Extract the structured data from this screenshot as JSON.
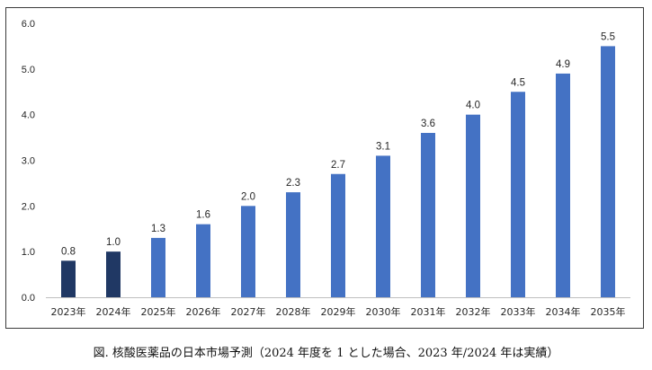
{
  "chart_data": {
    "type": "bar",
    "categories": [
      "2023年",
      "2024年",
      "2025年",
      "2026年",
      "2027年",
      "2028年",
      "2029年",
      "2030年",
      "2031年",
      "2032年",
      "2033年",
      "2034年",
      "2035年"
    ],
    "values": [
      0.8,
      1.0,
      1.3,
      1.6,
      2.0,
      2.3,
      2.7,
      3.1,
      3.6,
      4.0,
      4.5,
      4.9,
      5.5
    ],
    "data_labels": [
      "0.8",
      "1.0",
      "1.3",
      "1.6",
      "2.0",
      "2.3",
      "2.7",
      "3.1",
      "3.6",
      "4.0",
      "4.5",
      "4.9",
      "5.5"
    ],
    "actual_count": 2,
    "ylim": [
      0,
      6
    ],
    "yticks": [
      0,
      1,
      2,
      3,
      4,
      5,
      6
    ],
    "ytick_labels": [
      "0.0",
      "1.0",
      "2.0",
      "3.0",
      "4.0",
      "5.0",
      "6.0"
    ],
    "grid": false,
    "colors": {
      "actual": "#203864",
      "forecast": "#4472c4",
      "axis": "#bfbfbf",
      "text": "#262626"
    },
    "title": "",
    "xlabel": "",
    "ylabel": ""
  },
  "caption": "図. 核酸医薬品の日本市場予測（2024 年度を 1 とした場合、2023 年/2024 年は実績）"
}
